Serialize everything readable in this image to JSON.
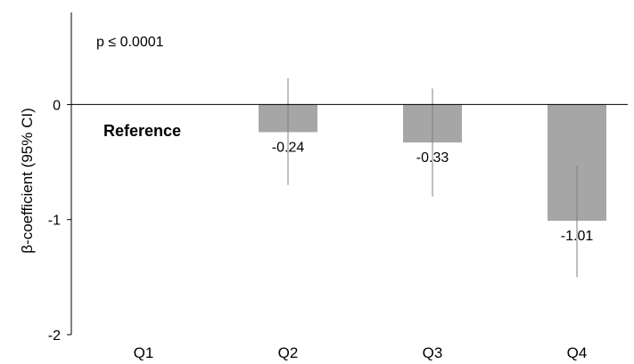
{
  "chart_data": {
    "type": "bar",
    "ylabel": "β-coefficient (95% CI)",
    "annotation": "p ≤ 0.0001",
    "reference_label": "Reference",
    "categories": [
      "Q1",
      "Q2",
      "Q3",
      "Q4"
    ],
    "values": [
      null,
      -0.24,
      -0.33,
      -1.01
    ],
    "value_labels": [
      "",
      "-0.24",
      "-0.33",
      "-1.01"
    ],
    "ci_lower": [
      null,
      -0.7,
      -0.8,
      -1.5
    ],
    "ci_upper": [
      null,
      0.23,
      0.14,
      -0.53
    ],
    "ylim": [
      -2,
      0.8
    ],
    "yticks": [
      0,
      -1,
      -2
    ],
    "ytick_labels": [
      "0",
      "-1",
      "-2"
    ],
    "grid": false,
    "bar_color": "#a6a6a6",
    "error_bar_color": "#808080"
  }
}
